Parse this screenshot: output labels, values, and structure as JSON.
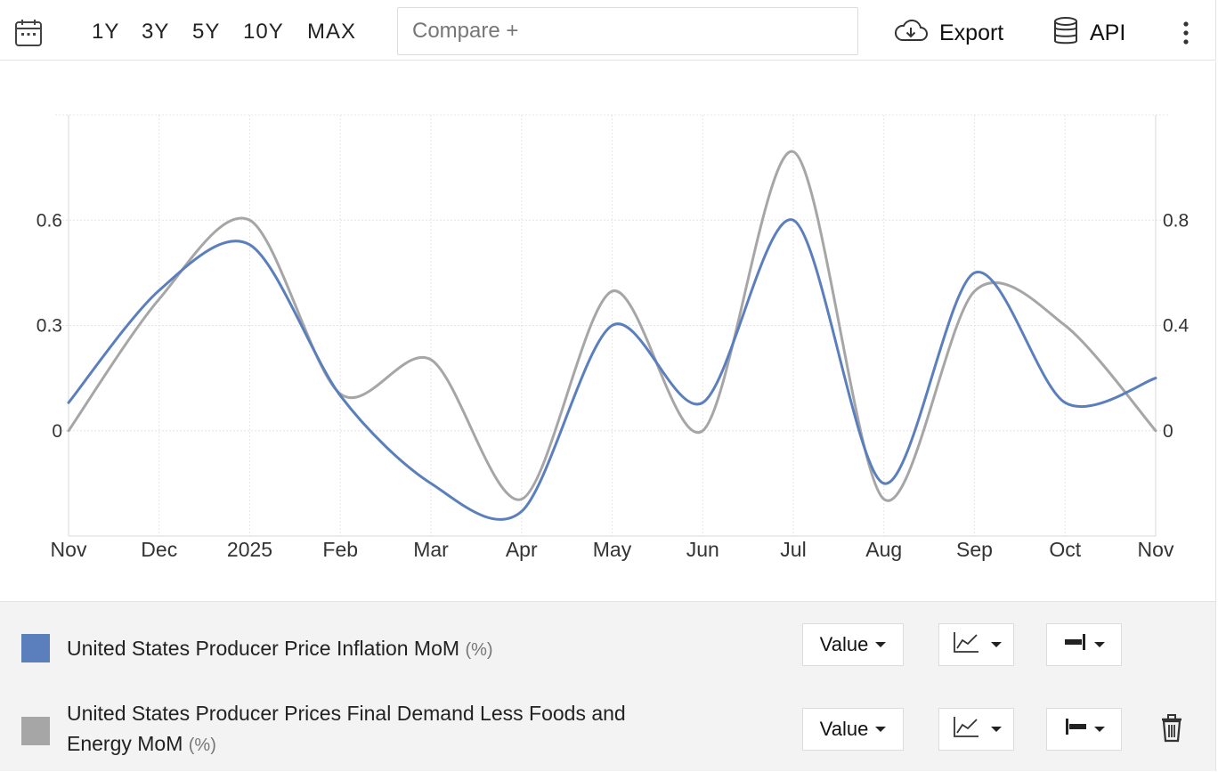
{
  "toolbar": {
    "ranges": [
      "1Y",
      "3Y",
      "5Y",
      "10Y",
      "MAX"
    ],
    "compare_placeholder": "Compare +",
    "export_label": "Export",
    "api_label": "API",
    "icons": {
      "calendar": "calendar-icon",
      "export": "cloud-download-icon",
      "api": "database-icon",
      "more": "more-vertical-icon"
    }
  },
  "chart_data": {
    "type": "line",
    "x": [
      "Nov",
      "Dec",
      "2025",
      "Feb",
      "Mar",
      "Apr",
      "May",
      "Jun",
      "Jul",
      "Aug",
      "Sep",
      "Oct",
      "Nov"
    ],
    "x_ticks": [
      "Nov",
      "Dec",
      "2025",
      "Feb",
      "Mar",
      "Apr",
      "May",
      "Jun",
      "Jul",
      "Aug",
      "Sep",
      "Oct",
      "Nov"
    ],
    "series": [
      {
        "name": "United States Producer Price Inflation MoM",
        "unit": "(%)",
        "axis": "left",
        "color": "#5b7fbd",
        "values": [
          0.08,
          0.4,
          0.53,
          0.1,
          -0.15,
          -0.23,
          0.3,
          0.08,
          0.6,
          -0.15,
          0.45,
          0.08,
          0.15
        ]
      },
      {
        "name": "United States Producer Prices Final Demand Less Foods and Energy MoM",
        "unit": "(%)",
        "axis": "right",
        "color": "#a6a6a6",
        "values": [
          0.0,
          0.5,
          0.8,
          0.14,
          0.27,
          -0.26,
          0.53,
          0.0,
          1.06,
          -0.26,
          0.53,
          0.4,
          0.0
        ]
      }
    ],
    "y_left": {
      "ticks": [
        0,
        0.3,
        0.6
      ],
      "tick_labels": [
        "0",
        "0.3",
        "0.6"
      ],
      "range": [
        -0.3,
        0.9
      ]
    },
    "y_right": {
      "ticks": [
        0,
        0.4,
        0.8
      ],
      "tick_labels": [
        "0",
        "0.4",
        "0.8"
      ],
      "range": [
        -0.4,
        1.2
      ]
    },
    "grid": true,
    "title": "",
    "xlabel": "",
    "ylabel": ""
  },
  "legend": {
    "rows": [
      {
        "label": "United States Producer Price Inflation MoM",
        "unit": "(%)",
        "swatch_color": "#5b7fbd",
        "value_btn": "Value",
        "chart_type_icon": "line-chart-icon",
        "axis_icon": "axis-right-icon"
      },
      {
        "label": "United States Producer Prices Final Demand Less Foods and Energy MoM",
        "unit": "(%)",
        "swatch_color": "#a6a6a6",
        "value_btn": "Value",
        "chart_type_icon": "line-chart-icon",
        "axis_icon": "axis-left-icon",
        "delete_icon": "trash-icon"
      }
    ]
  }
}
